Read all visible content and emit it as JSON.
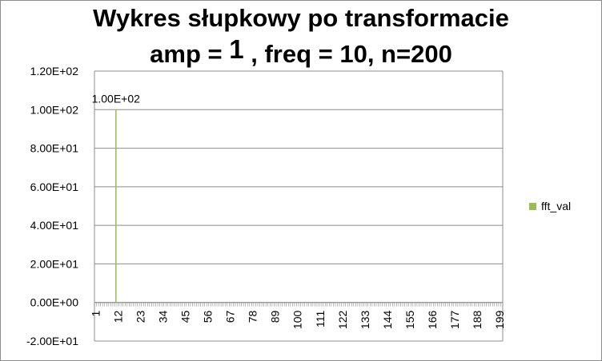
{
  "title": {
    "line1": "Wykres słupkowy po transformacie",
    "line2_prefix": "amp = ",
    "line2_amp": "1",
    "line2_suffix": " , freq = 10, n=200"
  },
  "colors": {
    "series": "#9bbb59",
    "grid": "#8c8c8c",
    "axis": "#8c8c8c"
  },
  "chart_data": {
    "type": "bar",
    "title": "Wykres słupkowy po transformacie amp =  1  , freq = 10, n=200",
    "x": {
      "min": 1,
      "max": 200,
      "tick_labels": [
        "1",
        "12",
        "23",
        "34",
        "45",
        "56",
        "67",
        "78",
        "89",
        "100",
        "111",
        "122",
        "133",
        "144",
        "155",
        "166",
        "177",
        "188",
        "199"
      ]
    },
    "ylim": [
      -20,
      120
    ],
    "y_tick_labels": [
      "-2.00E+01",
      "0.00E+00",
      "2.00E+01",
      "4.00E+01",
      "6.00E+01",
      "8.00E+01",
      "1.00E+02",
      "1.20E+02"
    ],
    "grid": true,
    "legend_position": "right",
    "series": [
      {
        "name": "fft_val",
        "points": [
          {
            "x": 11,
            "y": 100,
            "label": "1.00E+02"
          }
        ],
        "other_values": 0
      }
    ]
  }
}
